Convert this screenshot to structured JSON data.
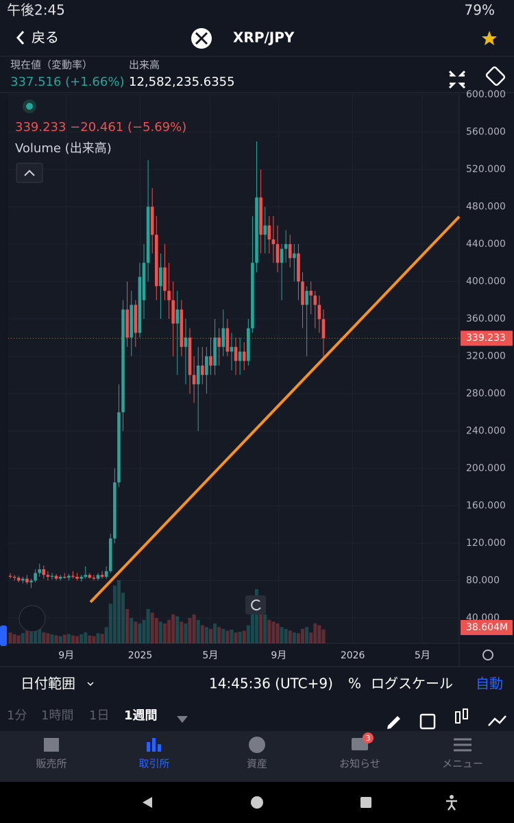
{
  "status": {
    "time": "午後2:45",
    "battery": "79%"
  },
  "header": {
    "back": "戻る",
    "pair": "XRP/JPY"
  },
  "info": {
    "price_label": "現在値（変動率）",
    "price": "337.516 (+1.66%)",
    "volume_label": "出来高",
    "volume": "12,582,235.6355"
  },
  "chart_data": {
    "type": "candlestick",
    "ohlc_text": "339.233 −20.461 (−5.69%)",
    "volume_name": "Volume (出来高)",
    "up_color": "#26a69a",
    "down_color": "#ef5350",
    "open": [
      85,
      84,
      83,
      80,
      82,
      78,
      80,
      88,
      92,
      86,
      84,
      85,
      82,
      84,
      83,
      85,
      84,
      82,
      84,
      86,
      83,
      82,
      86,
      84,
      90,
      125,
      185,
      260,
      370,
      340,
      375,
      345,
      380,
      420,
      480,
      450,
      395,
      415,
      390,
      380,
      355,
      370,
      330,
      340,
      300,
      290,
      310,
      300,
      320,
      310,
      340,
      330,
      350,
      325,
      330,
      315,
      325,
      315,
      350,
      420,
      490,
      450,
      460,
      445,
      440,
      420,
      435,
      440,
      425,
      430,
      400,
      375,
      390,
      385,
      375,
      359.694
    ],
    "high": [
      88,
      86,
      85,
      84,
      86,
      82,
      92,
      98,
      96,
      90,
      88,
      87,
      86,
      88,
      87,
      90,
      88,
      86,
      95,
      88,
      86,
      88,
      90,
      95,
      130,
      200,
      290,
      380,
      400,
      390,
      380,
      420,
      440,
      530,
      500,
      470,
      430,
      440,
      420,
      400,
      390,
      380,
      360,
      350,
      320,
      330,
      330,
      330,
      340,
      360,
      350,
      370,
      360,
      345,
      340,
      340,
      335,
      360,
      470,
      550,
      520,
      480,
      470,
      470,
      460,
      440,
      455,
      450,
      440,
      440,
      410,
      395,
      400,
      390,
      385,
      370
    ],
    "low": [
      82,
      80,
      78,
      77,
      76,
      72,
      78,
      84,
      82,
      80,
      81,
      80,
      80,
      82,
      80,
      82,
      80,
      79,
      82,
      82,
      80,
      80,
      82,
      82,
      88,
      120,
      180,
      240,
      330,
      320,
      330,
      340,
      360,
      400,
      430,
      380,
      360,
      380,
      360,
      320,
      300,
      320,
      290,
      280,
      270,
      240,
      290,
      280,
      300,
      300,
      310,
      320,
      320,
      305,
      300,
      300,
      305,
      310,
      345,
      410,
      430,
      430,
      430,
      420,
      410,
      380,
      420,
      415,
      400,
      380,
      350,
      320,
      365,
      350,
      345,
      320
    ],
    "close": [
      84,
      83,
      80,
      82,
      78,
      80,
      88,
      92,
      86,
      84,
      85,
      82,
      84,
      83,
      85,
      84,
      82,
      84,
      86,
      83,
      82,
      86,
      84,
      90,
      125,
      185,
      260,
      370,
      340,
      375,
      345,
      405,
      420,
      480,
      450,
      395,
      415,
      390,
      380,
      355,
      370,
      330,
      340,
      300,
      290,
      310,
      300,
      320,
      310,
      340,
      330,
      350,
      325,
      330,
      315,
      325,
      315,
      350,
      420,
      490,
      450,
      460,
      445,
      440,
      420,
      435,
      440,
      425,
      430,
      400,
      375,
      390,
      385,
      375,
      359.694,
      339.233
    ],
    "volume": [
      30,
      25,
      22,
      28,
      35,
      40,
      38,
      45,
      30,
      28,
      25,
      22,
      20,
      24,
      26,
      22,
      20,
      25,
      30,
      22,
      20,
      28,
      26,
      45,
      110,
      160,
      175,
      140,
      95,
      70,
      60,
      55,
      65,
      95,
      85,
      70,
      60,
      55,
      65,
      80,
      75,
      60,
      55,
      70,
      80,
      65,
      50,
      45,
      40,
      55,
      45,
      40,
      35,
      38,
      30,
      32,
      35,
      50,
      120,
      150,
      110,
      80,
      65,
      60,
      55,
      45,
      40,
      35,
      30,
      28,
      40,
      45,
      30,
      55,
      50,
      38.604
    ],
    "volume_lim": [
      0,
      190
    ],
    "last_volume_label": "38.604M",
    "last_price": 339.233,
    "ylim": [
      12.8,
      600.7
    ],
    "yticks": [
      {
        "value": 40,
        "label": "40.000"
      },
      {
        "value": 80,
        "label": "80.000"
      },
      {
        "value": 120,
        "label": "120.000"
      },
      {
        "value": 160,
        "label": "160.000"
      },
      {
        "value": 200,
        "label": "200.000"
      },
      {
        "value": 240,
        "label": "240.000"
      },
      {
        "value": 280,
        "label": "280.000"
      },
      {
        "value": 320,
        "label": "320.000"
      },
      {
        "value": 360,
        "label": "360.000"
      },
      {
        "value": 400,
        "label": "400.000"
      },
      {
        "value": 440,
        "label": "440.000"
      },
      {
        "value": 480,
        "label": "480.000"
      },
      {
        "value": 520,
        "label": "520.000"
      },
      {
        "value": 560,
        "label": "560.000"
      },
      {
        "value": 600,
        "label": "600.000"
      }
    ],
    "xlim": [
      0,
      108
    ],
    "xticks": [
      {
        "value": 13.9,
        "label": "9月"
      },
      {
        "value": 31.6,
        "label": "2025"
      },
      {
        "value": 48.4,
        "label": "5月"
      },
      {
        "value": 64.8,
        "label": "9月"
      },
      {
        "value": 82.5,
        "label": "2026"
      },
      {
        "value": 99.2,
        "label": "5月"
      }
    ],
    "trendline": {
      "x": [
        19.7,
        108
      ],
      "y": [
        56.9,
        469.4
      ],
      "color": "#f7931a"
    },
    "grid": true
  },
  "toolbar": {
    "range": "日付範囲",
    "clock": "14:45:36 (UTC+9)",
    "percent": "%",
    "log": "ログスケール",
    "auto": "自動"
  },
  "intervals": [
    "1分",
    "1時間",
    "1日",
    "1週間"
  ],
  "nav": {
    "items": [
      "販売所",
      "取引所",
      "資産",
      "お知らせ",
      "メニュー"
    ],
    "badge": "3"
  }
}
